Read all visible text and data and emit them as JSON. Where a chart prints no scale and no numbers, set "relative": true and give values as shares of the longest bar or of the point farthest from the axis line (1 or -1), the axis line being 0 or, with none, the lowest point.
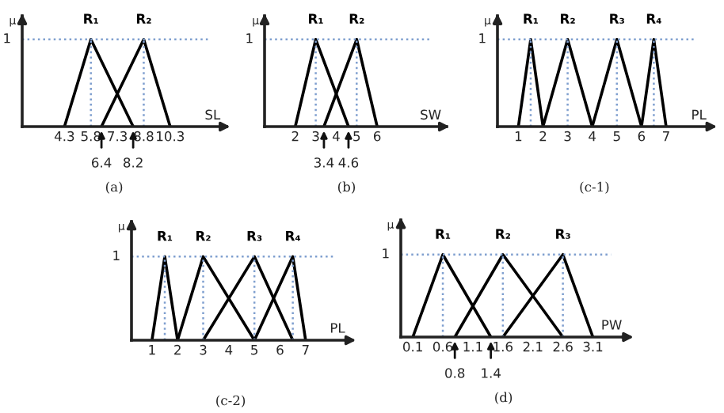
{
  "chart_data": [
    {
      "type": "line",
      "xlabel": "SL",
      "ylabel": "μ",
      "xlim": [
        1.9,
        13.5
      ],
      "relative": true,
      "xticks": [
        4.3,
        5.8,
        7.3,
        8.8,
        10.3
      ],
      "grid": false,
      "legend": false,
      "marker": "none",
      "line_style": "solid",
      "series": [
        {
          "name": "R₁",
          "color": "#000000",
          "x": [
            4.3,
            5.8,
            8.2
          ],
          "values": [
            0,
            1,
            0
          ]
        },
        {
          "name": "R₂",
          "color": "#000000",
          "x": [
            6.4,
            8.8,
            10.3
          ],
          "values": [
            0,
            1,
            0
          ]
        },
        {
          "type": "line",
          "line_style": "dotted",
          "color": "#7f9fcf",
          "x": [
            1.9,
            12.5
          ],
          "values": [
            1,
            1
          ]
        }
      ],
      "ref_lines": [
        {
          "axis": "x",
          "value": 5.8,
          "label": null,
          "color": "#7f9fcf",
          "line_style": "dotted"
        },
        {
          "axis": "x",
          "value": 8.8,
          "label": null,
          "color": "#7f9fcf",
          "line_style": "dotted"
        }
      ],
      "annotations": [
        {
          "text": "1",
          "x": 1.9,
          "y": 1
        },
        {
          "text": "6.4",
          "x": 6.4,
          "y": 0
        },
        {
          "text": "8.2",
          "x": 8.2,
          "y": 0
        },
        "(a)"
      ]
    },
    {
      "type": "line",
      "xlabel": "SW",
      "ylabel": "μ",
      "xlim": [
        0.5,
        9.4
      ],
      "relative": true,
      "xticks": [
        2,
        3,
        4,
        5,
        6
      ],
      "grid": false,
      "legend": false,
      "marker": "none",
      "line_style": "solid",
      "series": [
        {
          "name": "R₁",
          "color": "#000000",
          "x": [
            2,
            3,
            4.6
          ],
          "values": [
            0,
            1,
            0
          ]
        },
        {
          "name": "R₂",
          "color": "#000000",
          "x": [
            3.4,
            5,
            6
          ],
          "values": [
            0,
            1,
            0
          ]
        },
        {
          "type": "line",
          "line_style": "dotted",
          "color": "#7f9fcf",
          "x": [
            0.5,
            8.7
          ],
          "values": [
            1,
            1
          ]
        }
      ],
      "ref_lines": [
        {
          "axis": "x",
          "value": 3,
          "label": null,
          "color": "#7f9fcf",
          "line_style": "dotted"
        },
        {
          "axis": "x",
          "value": 5,
          "label": null,
          "color": "#7f9fcf",
          "line_style": "dotted"
        }
      ],
      "annotations": [
        {
          "text": "1",
          "x": 0.5,
          "y": 1
        },
        {
          "text": "3.4",
          "x": 3.4,
          "y": 0
        },
        {
          "text": "4.6",
          "x": 4.6,
          "y": 0
        },
        "(b)"
      ]
    },
    {
      "type": "line",
      "xlabel": "PL",
      "ylabel": "μ",
      "xlim": [
        0.15,
        8.9
      ],
      "relative": true,
      "xticks": [
        1,
        2,
        3,
        4,
        5,
        6,
        7
      ],
      "grid": false,
      "legend": false,
      "marker": "none",
      "line_style": "solid",
      "series": [
        {
          "name": "R₁",
          "color": "#000000",
          "x": [
            1,
            1.5,
            2
          ],
          "values": [
            0,
            1,
            0
          ]
        },
        {
          "name": "R₂",
          "color": "#000000",
          "x": [
            2,
            3,
            4
          ],
          "values": [
            0,
            1,
            0
          ]
        },
        {
          "name": "R₃",
          "color": "#000000",
          "x": [
            4,
            5,
            6
          ],
          "values": [
            0,
            1,
            0
          ]
        },
        {
          "name": "R₄",
          "color": "#000000",
          "x": [
            6,
            6.5,
            7
          ],
          "values": [
            0,
            1,
            0
          ]
        },
        {
          "type": "line",
          "line_style": "dotted",
          "color": "#7f9fcf",
          "x": [
            0.15,
            8.2
          ],
          "values": [
            1,
            1
          ]
        }
      ],
      "ref_lines": [
        {
          "axis": "x",
          "value": 1.5,
          "label": null,
          "color": "#7f9fcf",
          "line_style": "dotted"
        },
        {
          "axis": "x",
          "value": 3,
          "label": null,
          "color": "#7f9fcf",
          "line_style": "dotted"
        },
        {
          "axis": "x",
          "value": 5,
          "label": null,
          "color": "#7f9fcf",
          "line_style": "dotted"
        },
        {
          "axis": "x",
          "value": 6.5,
          "label": null,
          "color": "#7f9fcf",
          "line_style": "dotted"
        }
      ],
      "annotations": [
        {
          "text": "1",
          "x": 0.15,
          "y": 1
        },
        "(c-1)"
      ]
    },
    {
      "type": "line",
      "xlabel": "PL",
      "ylabel": "μ",
      "xlim": [
        0.2,
        8.8
      ],
      "relative": true,
      "xticks": [
        1,
        2,
        3,
        4,
        5,
        6,
        7
      ],
      "grid": false,
      "legend": false,
      "marker": "none",
      "line_style": "solid",
      "series": [
        {
          "name": "R₁",
          "color": "#000000",
          "x": [
            1,
            1.5,
            2
          ],
          "values": [
            0,
            1,
            0
          ]
        },
        {
          "name": "R₂",
          "color": "#000000",
          "x": [
            2,
            3,
            5
          ],
          "values": [
            0,
            1,
            0
          ]
        },
        {
          "name": "R₃",
          "color": "#000000",
          "x": [
            3,
            5,
            6.5
          ],
          "values": [
            0,
            1,
            0
          ]
        },
        {
          "name": "R₄",
          "color": "#000000",
          "x": [
            5,
            6.5,
            7
          ],
          "values": [
            0,
            1,
            0
          ]
        },
        {
          "type": "line",
          "line_style": "dotted",
          "color": "#7f9fcf",
          "x": [
            0.2,
            8.1
          ],
          "values": [
            1,
            1
          ]
        }
      ],
      "ref_lines": [
        {
          "axis": "x",
          "value": 1.5,
          "label": null,
          "color": "#7f9fcf",
          "line_style": "dotted"
        },
        {
          "axis": "x",
          "value": 3,
          "label": null,
          "color": "#7f9fcf",
          "line_style": "dotted"
        },
        {
          "axis": "x",
          "value": 5,
          "label": null,
          "color": "#7f9fcf",
          "line_style": "dotted"
        },
        {
          "axis": "x",
          "value": 6.5,
          "label": null,
          "color": "#7f9fcf",
          "line_style": "dotted"
        }
      ],
      "annotations": [
        {
          "text": "1",
          "x": 0.2,
          "y": 1
        },
        "(c-2)"
      ]
    },
    {
      "type": "line",
      "xlabel": "PW",
      "ylabel": "μ",
      "xlim": [
        -0.1,
        3.7
      ],
      "relative": true,
      "xticks": [
        0.1,
        0.6,
        1.1,
        1.6,
        2.1,
        2.6,
        3.1
      ],
      "grid": false,
      "legend": false,
      "marker": "none",
      "line_style": "solid",
      "series": [
        {
          "name": "R₁",
          "color": "#000000",
          "x": [
            0.1,
            0.6,
            1.4
          ],
          "values": [
            0,
            1,
            0
          ]
        },
        {
          "name": "R₂",
          "color": "#000000",
          "x": [
            0.8,
            1.6,
            2.6
          ],
          "values": [
            0,
            1,
            0
          ]
        },
        {
          "name": "R₃",
          "color": "#000000",
          "x": [
            1.6,
            2.6,
            3.1
          ],
          "values": [
            0,
            1,
            0
          ]
        },
        {
          "type": "line",
          "line_style": "dotted",
          "color": "#7f9fcf",
          "x": [
            -0.1,
            3.4
          ],
          "values": [
            1,
            1
          ]
        }
      ],
      "ref_lines": [
        {
          "axis": "x",
          "value": 0.6,
          "label": null,
          "color": "#7f9fcf",
          "line_style": "dotted"
        },
        {
          "axis": "x",
          "value": 1.6,
          "label": null,
          "color": "#7f9fcf",
          "line_style": "dotted"
        },
        {
          "axis": "x",
          "value": 2.6,
          "label": null,
          "color": "#7f9fcf",
          "line_style": "dotted"
        }
      ],
      "annotations": [
        {
          "text": "1",
          "x": -0.1,
          "y": 1
        },
        {
          "text": "0.8",
          "x": 0.8,
          "y": 0
        },
        {
          "text": "1.4",
          "x": 1.4,
          "y": 0
        },
        "(d)"
      ]
    }
  ]
}
